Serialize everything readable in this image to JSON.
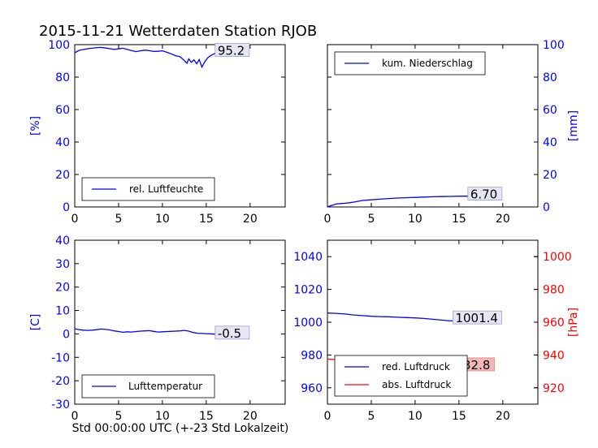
{
  "title": "2015-11-21 Wetterdaten Station RJOB",
  "xlabel_bottom": "Std 00:00:00 UTC (+-23 Std Lokalzeit)",
  "chart_data": [
    {
      "id": "humidity",
      "type": "line",
      "ylabel": "[%]",
      "ylabel_side": "left",
      "xlim": [
        0,
        24
      ],
      "ylim": [
        0,
        100
      ],
      "xticks": [
        0,
        5,
        10,
        15,
        20
      ],
      "yticks": [
        0,
        20,
        40,
        60,
        80,
        100
      ],
      "legend": "bottom-left",
      "annotation": "95.2",
      "series": [
        {
          "name": "rel. Luftfeuchte",
          "color": "#0000ff",
          "x": [
            0,
            0.5,
            1,
            1.5,
            2,
            2.5,
            3,
            3.5,
            4,
            4.5,
            5,
            5.5,
            6,
            6.5,
            7,
            7.5,
            8,
            8.5,
            9,
            9.5,
            10,
            10.5,
            11,
            11.5,
            12,
            12.5,
            12.8,
            13,
            13.3,
            13.6,
            13.9,
            14.2,
            14.5,
            14.8,
            15.2,
            15.6,
            16,
            16.5,
            17,
            17.5,
            18,
            18.5,
            19
          ],
          "y": [
            95,
            96.5,
            97,
            97.5,
            97.8,
            98.2,
            98.3,
            97.9,
            97.5,
            97.1,
            97.4,
            97.8,
            97,
            96.3,
            95.7,
            96.2,
            96.6,
            96.3,
            95.8,
            95.9,
            96.2,
            95.3,
            94.3,
            93.2,
            92.6,
            90.2,
            88.5,
            91.2,
            89.1,
            90.6,
            88.2,
            90.8,
            86.2,
            89.2,
            92.1,
            93.6,
            94.6,
            95.1,
            95.4,
            95.3,
            95.2,
            95.2,
            95.2
          ]
        }
      ]
    },
    {
      "id": "precip",
      "type": "line",
      "ylabel": "[mm]",
      "ylabel_side": "right",
      "xlim": [
        0,
        24
      ],
      "ylim": [
        0,
        100
      ],
      "xticks": [
        0,
        5,
        10,
        15,
        20
      ],
      "yticks": [
        0,
        20,
        40,
        60,
        80,
        100
      ],
      "legend": "top-left",
      "annotation": "6.70",
      "series": [
        {
          "name": "kum. Niederschlag",
          "color": "#0000ff",
          "x": [
            0,
            0.3,
            0.7,
            1,
            1.5,
            2,
            2.5,
            3,
            3.5,
            4,
            5,
            6,
            7,
            8,
            9,
            10,
            11,
            12,
            13,
            14,
            15,
            16,
            17,
            18,
            19
          ],
          "y": [
            0,
            0.6,
            1.3,
            1.8,
            2.1,
            2.3,
            2.6,
            3,
            3.5,
            4,
            4.4,
            4.8,
            5.2,
            5.5,
            5.7,
            5.9,
            6.1,
            6.3,
            6.4,
            6.5,
            6.6,
            6.65,
            6.7,
            6.7,
            6.7
          ]
        }
      ]
    },
    {
      "id": "temperature",
      "type": "line",
      "ylabel": "[C]",
      "ylabel_side": "left",
      "xlim": [
        0,
        24
      ],
      "ylim": [
        -30,
        40
      ],
      "xticks": [
        0,
        5,
        10,
        15,
        20
      ],
      "yticks": [
        -30,
        -20,
        -10,
        0,
        10,
        20,
        30,
        40
      ],
      "legend": "bottom-left",
      "annotation": "-0.5",
      "series": [
        {
          "name": "Lufttemperatur",
          "color": "#0000ff",
          "x": [
            0,
            0.5,
            1,
            1.5,
            2,
            2.5,
            3,
            3.5,
            4,
            4.5,
            5,
            5.5,
            6,
            6.5,
            7,
            7.5,
            8,
            8.5,
            9,
            9.5,
            10,
            10.5,
            11,
            11.5,
            12,
            12.5,
            13,
            13.5,
            14,
            15,
            16,
            17,
            18,
            19
          ],
          "y": [
            2.2,
            1.8,
            1.6,
            1.5,
            1.6,
            1.8,
            2.1,
            1.9,
            1.7,
            1.3,
            1.0,
            0.7,
            0.9,
            0.8,
            1.0,
            1.2,
            1.3,
            1.4,
            1.1,
            0.8,
            0.9,
            1.0,
            1.1,
            1.2,
            1.3,
            1.5,
            1.2,
            0.6,
            0.3,
            0.1,
            -0.1,
            -0.3,
            -0.4,
            -0.5
          ]
        }
      ]
    },
    {
      "id": "pressure",
      "type": "line",
      "ylabel": "[hPa]",
      "ylabel_side": "right",
      "xlim": [
        0,
        24
      ],
      "ylim": [
        950,
        1050
      ],
      "ylim_right": [
        910,
        1010
      ],
      "xticks": [
        0,
        5,
        10,
        15,
        20
      ],
      "yticks": [
        960,
        980,
        1000,
        1020,
        1040
      ],
      "yticks_right": [
        920,
        940,
        960,
        980,
        1000
      ],
      "legend": "bottom-left",
      "annotations": [
        "1001.4",
        "932.8"
      ],
      "series": [
        {
          "name": "red. Luftdruck",
          "color": "#0000ff",
          "axis": "left",
          "x": [
            0,
            1,
            2,
            3,
            4,
            5,
            6,
            7,
            8,
            9,
            10,
            11,
            12,
            13,
            14,
            15,
            16,
            17,
            18,
            19
          ],
          "y": [
            1005.6,
            1005.4,
            1005,
            1004.4,
            1004,
            1003.6,
            1003.4,
            1003.3,
            1003,
            1002.8,
            1002.6,
            1002.3,
            1001.8,
            1001.3,
            1000.8,
            1001,
            1001.3,
            1001.4,
            1001.4,
            1001.4
          ]
        },
        {
          "name": "abs. Luftdruck",
          "color": "#ff0000",
          "axis": "right",
          "x": [
            0,
            1,
            2,
            3,
            4,
            5,
            6,
            7,
            8,
            9,
            10,
            11,
            12,
            13,
            14,
            15,
            16,
            17,
            18,
            19
          ],
          "y": [
            937.5,
            937.2,
            936.5,
            935.8,
            935.4,
            935.1,
            934.9,
            934.7,
            934.5,
            934.3,
            934.1,
            933.9,
            933.6,
            933.3,
            933,
            932.8,
            932.8,
            932.8,
            932.8,
            932.8
          ]
        }
      ]
    }
  ]
}
